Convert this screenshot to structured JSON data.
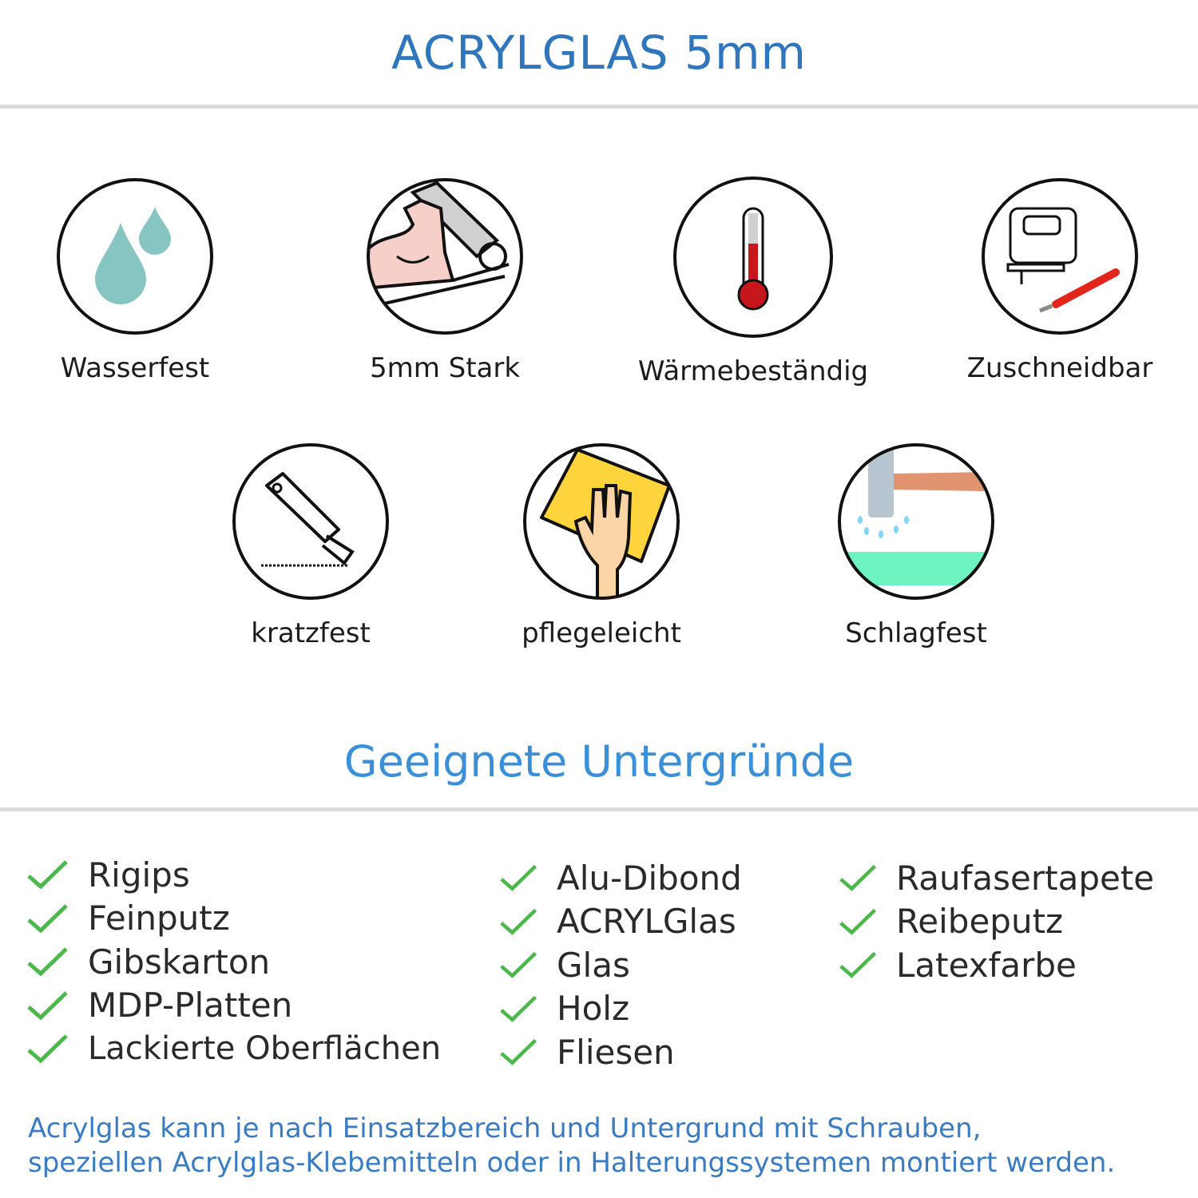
{
  "title": "ACRYLGLAS 5mm",
  "features": [
    {
      "label": "Wasserfest",
      "icon": "water-drops-icon"
    },
    {
      "label": "5mm Stark",
      "icon": "strong-arm-icon"
    },
    {
      "label": "Wärmebeständig",
      "icon": "thermometer-icon"
    },
    {
      "label": "Zuschneidbar",
      "icon": "jigsaw-cutter-icon"
    },
    {
      "label": "kratzfest",
      "icon": "cutter-knife-icon"
    },
    {
      "label": "pflegeleicht",
      "icon": "hand-cleaning-icon"
    },
    {
      "label": "Schlagfest",
      "icon": "hammer-impact-icon"
    }
  ],
  "surfaces_heading": "Geeignete Untergründe",
  "surfaces": {
    "col1": [
      "Rigips",
      "Feinputz",
      "Gibskarton",
      "MDP-Platten",
      "Lackierte Oberflächen"
    ],
    "col2": [
      "Alu-Dibond",
      "ACRYLGlas",
      "Glas",
      "Holz",
      "Fliesen"
    ],
    "col3": [
      "Raufasertapete",
      "Reibeputz",
      "Latexfarbe"
    ]
  },
  "footer": {
    "line1": "Acrylglas kann je nach Einsatzbereich und Untergrund mit Schrauben,",
    "line2": "speziellen Acrylglas-Klebemitteln oder in Halterungssystemen montiert werden."
  },
  "colors": {
    "title": "#2f76bd",
    "heading": "#3a8fd6",
    "check": "#4cb84c",
    "footer": "#3a7cc4"
  }
}
